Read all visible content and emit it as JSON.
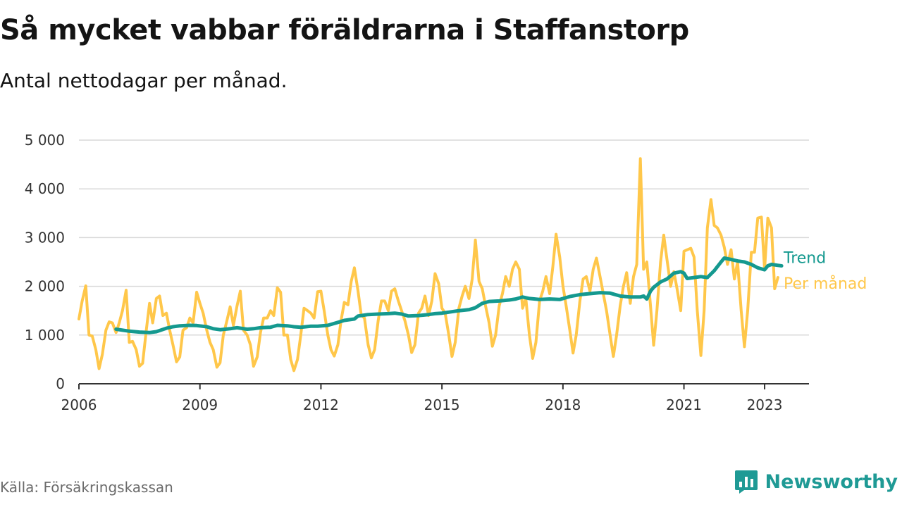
{
  "header": {
    "title": "Så mycket vabbar föräldrarna i Staffanstorp",
    "subtitle": "Antal nettodagar per månad."
  },
  "footer": {
    "source": "Källa: Försäkringskassan",
    "brand": "Newsworthy",
    "brand_icon": "bar-chart-speech-icon",
    "brand_color": "#1f9a95"
  },
  "chart_data": {
    "type": "line",
    "x_ticks": [
      2006,
      2009,
      2012,
      2015,
      2018,
      2021,
      2023
    ],
    "x_tick_labels": [
      "2006",
      "2009",
      "2012",
      "2015",
      "2018",
      "2021",
      "2023"
    ],
    "y_ticks": [
      0,
      1000,
      2000,
      3000,
      4000,
      5000
    ],
    "y_tick_labels": [
      "0",
      "1 000",
      "2 000",
      "3 000",
      "4 000",
      "5 000"
    ],
    "xlim": [
      2006,
      2024.1
    ],
    "ylim": [
      0,
      5000
    ],
    "grid": true,
    "series": [
      {
        "name": "Per månad",
        "color": "#ffc74a",
        "points": [
          [
            2006.0,
            1330
          ],
          [
            2006.08,
            1700
          ],
          [
            2006.17,
            2010
          ],
          [
            2006.25,
            1000
          ],
          [
            2006.33,
            980
          ],
          [
            2006.42,
            700
          ],
          [
            2006.5,
            310
          ],
          [
            2006.58,
            600
          ],
          [
            2006.67,
            1100
          ],
          [
            2006.75,
            1270
          ],
          [
            2006.83,
            1250
          ],
          [
            2006.92,
            1050
          ],
          [
            2007.0,
            1250
          ],
          [
            2007.08,
            1500
          ],
          [
            2007.17,
            1920
          ],
          [
            2007.25,
            850
          ],
          [
            2007.33,
            870
          ],
          [
            2007.42,
            700
          ],
          [
            2007.5,
            360
          ],
          [
            2007.58,
            420
          ],
          [
            2007.67,
            1100
          ],
          [
            2007.75,
            1650
          ],
          [
            2007.83,
            1250
          ],
          [
            2007.92,
            1750
          ],
          [
            2008.0,
            1800
          ],
          [
            2008.08,
            1400
          ],
          [
            2008.17,
            1450
          ],
          [
            2008.25,
            1100
          ],
          [
            2008.33,
            800
          ],
          [
            2008.42,
            450
          ],
          [
            2008.5,
            550
          ],
          [
            2008.58,
            1100
          ],
          [
            2008.67,
            1150
          ],
          [
            2008.75,
            1350
          ],
          [
            2008.83,
            1250
          ],
          [
            2008.92,
            1880
          ],
          [
            2009.0,
            1650
          ],
          [
            2009.08,
            1450
          ],
          [
            2009.17,
            1100
          ],
          [
            2009.25,
            850
          ],
          [
            2009.33,
            700
          ],
          [
            2009.42,
            340
          ],
          [
            2009.5,
            430
          ],
          [
            2009.58,
            1000
          ],
          [
            2009.67,
            1300
          ],
          [
            2009.75,
            1580
          ],
          [
            2009.83,
            1200
          ],
          [
            2009.92,
            1600
          ],
          [
            2010.0,
            1900
          ],
          [
            2010.08,
            1100
          ],
          [
            2010.17,
            1000
          ],
          [
            2010.25,
            800
          ],
          [
            2010.33,
            360
          ],
          [
            2010.42,
            550
          ],
          [
            2010.5,
            1050
          ],
          [
            2010.58,
            1350
          ],
          [
            2010.67,
            1350
          ],
          [
            2010.75,
            1500
          ],
          [
            2010.83,
            1400
          ],
          [
            2010.92,
            1970
          ],
          [
            2011.0,
            1880
          ],
          [
            2011.08,
            1000
          ],
          [
            2011.17,
            1000
          ],
          [
            2011.25,
            500
          ],
          [
            2011.33,
            270
          ],
          [
            2011.42,
            500
          ],
          [
            2011.5,
            1000
          ],
          [
            2011.58,
            1550
          ],
          [
            2011.67,
            1500
          ],
          [
            2011.75,
            1450
          ],
          [
            2011.83,
            1350
          ],
          [
            2011.92,
            1890
          ],
          [
            2012.0,
            1900
          ],
          [
            2012.08,
            1500
          ],
          [
            2012.17,
            1000
          ],
          [
            2012.25,
            700
          ],
          [
            2012.33,
            570
          ],
          [
            2012.42,
            800
          ],
          [
            2012.5,
            1300
          ],
          [
            2012.58,
            1670
          ],
          [
            2012.67,
            1620
          ],
          [
            2012.75,
            2100
          ],
          [
            2012.83,
            2380
          ],
          [
            2012.92,
            1900
          ],
          [
            2013.0,
            1400
          ],
          [
            2013.08,
            1350
          ],
          [
            2013.17,
            800
          ],
          [
            2013.25,
            530
          ],
          [
            2013.33,
            700
          ],
          [
            2013.42,
            1300
          ],
          [
            2013.5,
            1700
          ],
          [
            2013.58,
            1700
          ],
          [
            2013.67,
            1500
          ],
          [
            2013.75,
            1900
          ],
          [
            2013.83,
            1950
          ],
          [
            2013.92,
            1700
          ],
          [
            2014.0,
            1500
          ],
          [
            2014.08,
            1300
          ],
          [
            2014.17,
            1000
          ],
          [
            2014.25,
            640
          ],
          [
            2014.33,
            800
          ],
          [
            2014.42,
            1450
          ],
          [
            2014.5,
            1550
          ],
          [
            2014.58,
            1800
          ],
          [
            2014.67,
            1400
          ],
          [
            2014.75,
            1700
          ],
          [
            2014.83,
            2260
          ],
          [
            2014.92,
            2050
          ],
          [
            2015.0,
            1550
          ],
          [
            2015.08,
            1450
          ],
          [
            2015.17,
            1000
          ],
          [
            2015.25,
            560
          ],
          [
            2015.33,
            850
          ],
          [
            2015.42,
            1550
          ],
          [
            2015.5,
            1800
          ],
          [
            2015.58,
            2000
          ],
          [
            2015.67,
            1750
          ],
          [
            2015.75,
            2150
          ],
          [
            2015.83,
            2950
          ],
          [
            2015.92,
            2100
          ],
          [
            2016.0,
            1950
          ],
          [
            2016.08,
            1600
          ],
          [
            2016.17,
            1250
          ],
          [
            2016.25,
            770
          ],
          [
            2016.33,
            1000
          ],
          [
            2016.42,
            1600
          ],
          [
            2016.5,
            1850
          ],
          [
            2016.58,
            2200
          ],
          [
            2016.67,
            2000
          ],
          [
            2016.75,
            2350
          ],
          [
            2016.83,
            2500
          ],
          [
            2016.92,
            2350
          ],
          [
            2017.0,
            1550
          ],
          [
            2017.08,
            1750
          ],
          [
            2017.17,
            1000
          ],
          [
            2017.25,
            520
          ],
          [
            2017.33,
            850
          ],
          [
            2017.42,
            1700
          ],
          [
            2017.5,
            1900
          ],
          [
            2017.58,
            2200
          ],
          [
            2017.67,
            1850
          ],
          [
            2017.75,
            2400
          ],
          [
            2017.83,
            3070
          ],
          [
            2017.92,
            2600
          ],
          [
            2018.0,
            2000
          ],
          [
            2018.08,
            1600
          ],
          [
            2018.17,
            1100
          ],
          [
            2018.25,
            630
          ],
          [
            2018.33,
            1000
          ],
          [
            2018.42,
            1700
          ],
          [
            2018.5,
            2150
          ],
          [
            2018.58,
            2200
          ],
          [
            2018.67,
            1900
          ],
          [
            2018.75,
            2350
          ],
          [
            2018.83,
            2580
          ],
          [
            2018.92,
            2200
          ],
          [
            2019.0,
            1850
          ],
          [
            2019.08,
            1500
          ],
          [
            2019.17,
            1000
          ],
          [
            2019.25,
            560
          ],
          [
            2019.33,
            1000
          ],
          [
            2019.42,
            1600
          ],
          [
            2019.5,
            2000
          ],
          [
            2019.58,
            2280
          ],
          [
            2019.67,
            1650
          ],
          [
            2019.75,
            2200
          ],
          [
            2019.83,
            2450
          ],
          [
            2019.92,
            4620
          ],
          [
            2020.0,
            2350
          ],
          [
            2020.08,
            2500
          ],
          [
            2020.17,
            1600
          ],
          [
            2020.25,
            790
          ],
          [
            2020.33,
            1500
          ],
          [
            2020.42,
            2500
          ],
          [
            2020.5,
            3050
          ],
          [
            2020.58,
            2550
          ],
          [
            2020.67,
            2000
          ],
          [
            2020.75,
            2300
          ],
          [
            2020.83,
            1950
          ],
          [
            2020.92,
            1500
          ],
          [
            2021.0,
            2720
          ],
          [
            2021.08,
            2750
          ],
          [
            2021.17,
            2780
          ],
          [
            2021.25,
            2600
          ],
          [
            2021.33,
            1500
          ],
          [
            2021.42,
            580
          ],
          [
            2021.5,
            1500
          ],
          [
            2021.58,
            3200
          ],
          [
            2021.67,
            3780
          ],
          [
            2021.75,
            3250
          ],
          [
            2021.83,
            3200
          ],
          [
            2021.92,
            3050
          ],
          [
            2022.0,
            2800
          ],
          [
            2022.08,
            2450
          ],
          [
            2022.17,
            2750
          ],
          [
            2022.25,
            2150
          ],
          [
            2022.33,
            2500
          ],
          [
            2022.42,
            1500
          ],
          [
            2022.5,
            760
          ],
          [
            2022.58,
            1500
          ],
          [
            2022.67,
            2700
          ],
          [
            2022.75,
            2700
          ],
          [
            2022.83,
            3400
          ],
          [
            2022.92,
            3420
          ],
          [
            2023.0,
            2350
          ],
          [
            2023.08,
            3400
          ],
          [
            2023.17,
            3200
          ],
          [
            2023.25,
            1950
          ],
          [
            2023.33,
            2180
          ]
        ]
      },
      {
        "name": "Trend",
        "color": "#14998f",
        "points": [
          [
            2006.92,
            1120
          ],
          [
            2007.25,
            1080
          ],
          [
            2007.5,
            1060
          ],
          [
            2007.75,
            1050
          ],
          [
            2007.92,
            1070
          ],
          [
            2008.17,
            1140
          ],
          [
            2008.33,
            1170
          ],
          [
            2008.5,
            1190
          ],
          [
            2008.75,
            1200
          ],
          [
            2008.92,
            1195
          ],
          [
            2009.17,
            1170
          ],
          [
            2009.33,
            1130
          ],
          [
            2009.5,
            1110
          ],
          [
            2009.75,
            1130
          ],
          [
            2009.92,
            1150
          ],
          [
            2010.17,
            1120
          ],
          [
            2010.33,
            1130
          ],
          [
            2010.5,
            1150
          ],
          [
            2010.75,
            1160
          ],
          [
            2010.92,
            1200
          ],
          [
            2011.17,
            1190
          ],
          [
            2011.33,
            1170
          ],
          [
            2011.5,
            1160
          ],
          [
            2011.75,
            1180
          ],
          [
            2011.92,
            1180
          ],
          [
            2012.17,
            1200
          ],
          [
            2012.42,
            1260
          ],
          [
            2012.58,
            1300
          ],
          [
            2012.83,
            1330
          ],
          [
            2012.92,
            1390
          ],
          [
            2013.17,
            1420
          ],
          [
            2013.42,
            1430
          ],
          [
            2013.67,
            1440
          ],
          [
            2013.83,
            1450
          ],
          [
            2014.0,
            1430
          ],
          [
            2014.17,
            1390
          ],
          [
            2014.42,
            1400
          ],
          [
            2014.67,
            1420
          ],
          [
            2014.83,
            1440
          ],
          [
            2015.0,
            1450
          ],
          [
            2015.17,
            1470
          ],
          [
            2015.42,
            1500
          ],
          [
            2015.67,
            1520
          ],
          [
            2015.83,
            1560
          ],
          [
            2016.0,
            1650
          ],
          [
            2016.17,
            1690
          ],
          [
            2016.42,
            1700
          ],
          [
            2016.67,
            1720
          ],
          [
            2016.83,
            1740
          ],
          [
            2017.0,
            1780
          ],
          [
            2017.17,
            1750
          ],
          [
            2017.42,
            1730
          ],
          [
            2017.67,
            1740
          ],
          [
            2017.92,
            1730
          ],
          [
            2018.17,
            1790
          ],
          [
            2018.42,
            1830
          ],
          [
            2018.67,
            1850
          ],
          [
            2018.92,
            1870
          ],
          [
            2019.17,
            1860
          ],
          [
            2019.42,
            1800
          ],
          [
            2019.67,
            1780
          ],
          [
            2019.92,
            1780
          ],
          [
            2020.0,
            1800
          ],
          [
            2020.08,
            1740
          ],
          [
            2020.17,
            1900
          ],
          [
            2020.25,
            1980
          ],
          [
            2020.42,
            2090
          ],
          [
            2020.58,
            2150
          ],
          [
            2020.75,
            2270
          ],
          [
            2020.92,
            2300
          ],
          [
            2021.0,
            2270
          ],
          [
            2021.08,
            2160
          ],
          [
            2021.25,
            2180
          ],
          [
            2021.42,
            2200
          ],
          [
            2021.58,
            2180
          ],
          [
            2021.75,
            2320
          ],
          [
            2021.92,
            2500
          ],
          [
            2022.0,
            2580
          ],
          [
            2022.17,
            2550
          ],
          [
            2022.33,
            2520
          ],
          [
            2022.5,
            2500
          ],
          [
            2022.67,
            2450
          ],
          [
            2022.83,
            2380
          ],
          [
            2023.0,
            2340
          ],
          [
            2023.08,
            2420
          ],
          [
            2023.17,
            2450
          ],
          [
            2023.33,
            2430
          ],
          [
            2023.42,
            2420
          ]
        ]
      }
    ]
  }
}
